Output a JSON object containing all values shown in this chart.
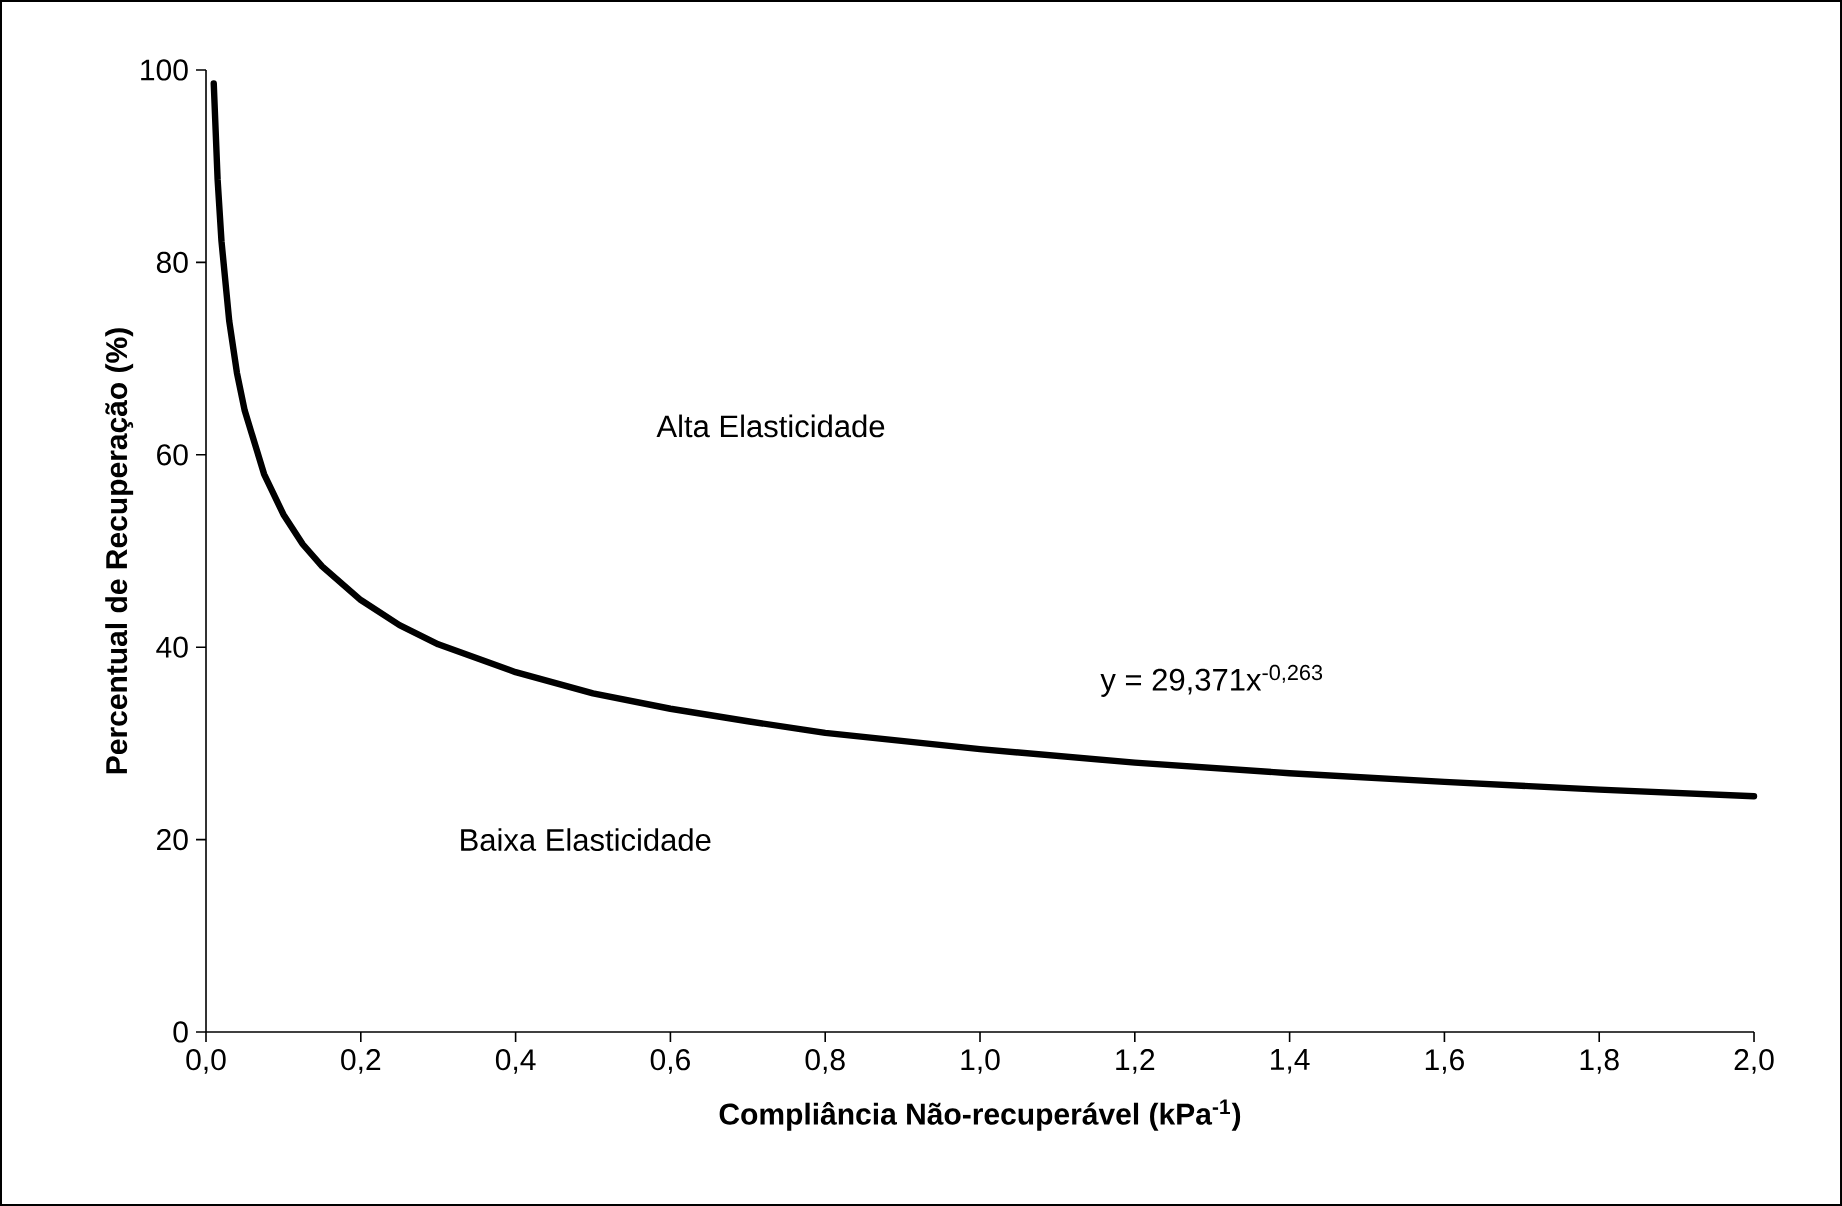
{
  "chart_data": {
    "type": "line",
    "xlabel": "Compliância Não-recuperável (kPa$^{-1}$)",
    "ylabel": "Percentual de Recuperação (%)",
    "x": [
      0.01,
      0.015,
      0.02,
      0.03,
      0.04,
      0.05,
      0.075,
      0.1,
      0.125,
      0.15,
      0.2,
      0.25,
      0.3,
      0.4,
      0.5,
      0.6,
      0.7,
      0.8,
      1.0,
      1.2,
      1.4,
      1.6,
      1.8,
      2.0
    ],
    "series": [
      {
        "color": "#000000",
        "values": [
          98.6,
          88.6,
          82.2,
          73.9,
          68.5,
          64.6,
          58.0,
          53.8,
          50.7,
          48.4,
          44.9,
          42.3,
          40.3,
          37.4,
          35.2,
          33.6,
          32.3,
          31.1,
          29.4,
          28.0,
          26.9,
          26.0,
          25.2,
          24.5
        ]
      }
    ],
    "xlim": [
      0,
      2
    ],
    "xticks": [
      {
        "value": 0,
        "label": "0,0"
      },
      {
        "value": 0.2,
        "label": "0,2"
      },
      {
        "value": 0.4,
        "label": "0,4"
      },
      {
        "value": 0.6,
        "label": "0,6"
      },
      {
        "value": 0.8,
        "label": "0,8"
      },
      {
        "value": 1.0,
        "label": "1,0"
      },
      {
        "value": 1.2,
        "label": "1,2"
      },
      {
        "value": 1.4,
        "label": "1,4"
      },
      {
        "value": 1.6,
        "label": "1,6"
      },
      {
        "value": 1.8,
        "label": "1,8"
      },
      {
        "value": 2.0,
        "label": "2,0"
      }
    ],
    "ylim": [
      0,
      100
    ],
    "yticks": [
      0,
      20,
      40,
      60,
      80,
      100
    ],
    "grid": false,
    "marker": "none",
    "line_style": "solid",
    "annotations": [
      "Alta Elasticidade",
      "Baixa Elasticidade",
      "y = 29,371x$^{-0,263}$"
    ]
  }
}
